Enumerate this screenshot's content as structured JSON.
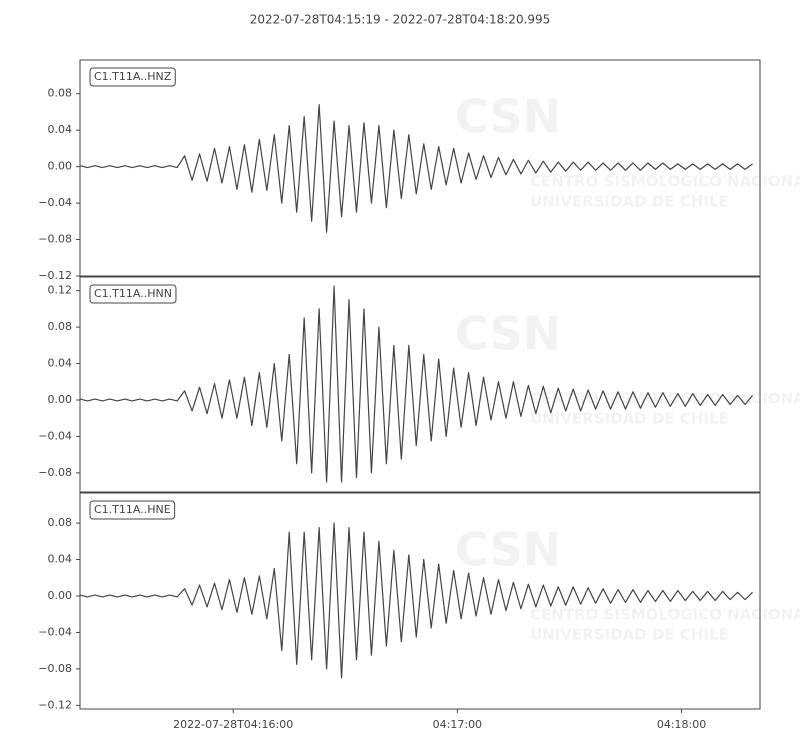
{
  "title": "2022-07-28T04:15:19  -  2022-07-28T04:18:20.995",
  "watermark": {
    "logo": "CSN",
    "lines": [
      "CENTRO SISMOLOGICO NACIONAL",
      "UNIVERSIDAD DE CHILE"
    ]
  },
  "chart_data": [
    {
      "type": "line",
      "label": "C1.T11A..HNZ",
      "color": "#444444",
      "xlim": [
        0,
        181.995
      ],
      "ylim": [
        -0.12,
        0.117
      ],
      "yticks": [
        {
          "value": -0.12,
          "label": "−0.12"
        },
        {
          "value": -0.08,
          "label": "−0.08"
        },
        {
          "value": -0.04,
          "label": "−0.04"
        },
        {
          "value": 0,
          "label": "0.00"
        },
        0.04,
        0.08
      ],
      "x": [
        0,
        2,
        4,
        6,
        8,
        10,
        12,
        14,
        16,
        18,
        20,
        22,
        24,
        26,
        28,
        30,
        32,
        34,
        36,
        38,
        40,
        42,
        44,
        46,
        48,
        50,
        52,
        54,
        56,
        58,
        60,
        62,
        64,
        66,
        68,
        70,
        72,
        74,
        76,
        78,
        80,
        82,
        84,
        86,
        88,
        90,
        92,
        94,
        96,
        98,
        100,
        102,
        104,
        106,
        108,
        110,
        112,
        114,
        116,
        118,
        120,
        122,
        124,
        126,
        128,
        130,
        132,
        134,
        136,
        138,
        140,
        142,
        144,
        146,
        148,
        150,
        152,
        154,
        156,
        158,
        160,
        162,
        164,
        166,
        168,
        170,
        172,
        174,
        176,
        178,
        180
      ],
      "values": [
        0.001,
        -0.001,
        0.001,
        -0.001,
        0.001,
        -0.001,
        0.001,
        -0.001,
        0.001,
        -0.001,
        0.001,
        -0.001,
        0.001,
        -0.001,
        0.012,
        -0.015,
        0.014,
        -0.016,
        0.02,
        -0.018,
        0.022,
        -0.025,
        0.024,
        -0.028,
        0.03,
        -0.026,
        0.035,
        -0.04,
        0.045,
        -0.05,
        0.055,
        -0.06,
        0.068,
        -0.072,
        0.05,
        -0.055,
        0.045,
        -0.05,
        0.048,
        -0.04,
        0.045,
        -0.045,
        0.04,
        -0.035,
        0.035,
        -0.03,
        0.025,
        -0.025,
        0.022,
        -0.02,
        0.02,
        -0.018,
        0.015,
        -0.014,
        0.012,
        -0.012,
        0.01,
        -0.009,
        0.008,
        -0.008,
        0.007,
        -0.007,
        0.006,
        -0.006,
        0.005,
        -0.005,
        0.005,
        -0.004,
        0.005,
        -0.004,
        0.004,
        -0.004,
        0.004,
        -0.004,
        0.004,
        -0.004,
        0.004,
        -0.003,
        0.004,
        -0.003,
        0.003,
        -0.003,
        0.003,
        -0.003,
        0.003,
        -0.003,
        0.003,
        -0.003,
        0.003,
        -0.003,
        0.003
      ]
    },
    {
      "type": "line",
      "label": "C1.T11A..HNN",
      "color": "#444444",
      "xlim": [
        0,
        181.995
      ],
      "ylim": [
        -0.101,
        0.135
      ],
      "yticks": [
        {
          "value": -0.08,
          "label": "−0.08"
        },
        {
          "value": -0.04,
          "label": "−0.04"
        },
        {
          "value": 0,
          "label": "0.00"
        },
        0.04,
        0.08,
        0.12
      ],
      "x": [
        0,
        2,
        4,
        6,
        8,
        10,
        12,
        14,
        16,
        18,
        20,
        22,
        24,
        26,
        28,
        30,
        32,
        34,
        36,
        38,
        40,
        42,
        44,
        46,
        48,
        50,
        52,
        54,
        56,
        58,
        60,
        62,
        64,
        66,
        68,
        70,
        72,
        74,
        76,
        78,
        80,
        82,
        84,
        86,
        88,
        90,
        92,
        94,
        96,
        98,
        100,
        102,
        104,
        106,
        108,
        110,
        112,
        114,
        116,
        118,
        120,
        122,
        124,
        126,
        128,
        130,
        132,
        134,
        136,
        138,
        140,
        142,
        144,
        146,
        148,
        150,
        152,
        154,
        156,
        158,
        160,
        162,
        164,
        166,
        168,
        170,
        172,
        174,
        176,
        178,
        180
      ],
      "values": [
        0.001,
        -0.001,
        0.001,
        -0.001,
        0.001,
        -0.001,
        0.001,
        -0.001,
        0.001,
        -0.001,
        0.001,
        -0.001,
        0.001,
        -0.001,
        0.01,
        -0.012,
        0.014,
        -0.015,
        0.018,
        -0.02,
        0.022,
        -0.02,
        0.025,
        -0.028,
        0.03,
        -0.03,
        0.04,
        -0.045,
        0.05,
        -0.07,
        0.09,
        -0.08,
        0.1,
        -0.09,
        0.125,
        -0.09,
        0.11,
        -0.085,
        0.1,
        -0.08,
        0.08,
        -0.07,
        0.06,
        -0.065,
        0.06,
        -0.05,
        0.05,
        -0.045,
        0.045,
        -0.04,
        0.035,
        -0.03,
        0.03,
        -0.028,
        0.025,
        -0.022,
        0.02,
        -0.02,
        0.02,
        -0.018,
        0.016,
        -0.015,
        0.015,
        -0.014,
        0.013,
        -0.012,
        0.012,
        -0.012,
        0.011,
        -0.01,
        0.01,
        -0.01,
        0.009,
        -0.01,
        0.009,
        -0.009,
        0.008,
        -0.008,
        0.008,
        -0.007,
        0.007,
        -0.007,
        0.007,
        -0.006,
        0.006,
        -0.006,
        0.006,
        -0.005,
        0.005,
        -0.005,
        0.005
      ]
    },
    {
      "type": "line",
      "label": "C1.T11A..HNE",
      "color": "#444444",
      "xlim": [
        0,
        181.995
      ],
      "ylim": [
        -0.124,
        0.113
      ],
      "yticks": [
        {
          "value": -0.12,
          "label": "−0.12"
        },
        {
          "value": -0.08,
          "label": "−0.08"
        },
        {
          "value": -0.04,
          "label": "−0.04"
        },
        {
          "value": 0,
          "label": "0.00"
        },
        0.04,
        0.08
      ],
      "xticks": [
        {
          "value": 41,
          "label": "2022-07-28T04:16:00"
        },
        {
          "value": 101,
          "label": "04:17:00"
        },
        {
          "value": 161,
          "label": "04:18:00"
        }
      ],
      "x": [
        0,
        2,
        4,
        6,
        8,
        10,
        12,
        14,
        16,
        18,
        20,
        22,
        24,
        26,
        28,
        30,
        32,
        34,
        36,
        38,
        40,
        42,
        44,
        46,
        48,
        50,
        52,
        54,
        56,
        58,
        60,
        62,
        64,
        66,
        68,
        70,
        72,
        74,
        76,
        78,
        80,
        82,
        84,
        86,
        88,
        90,
        92,
        94,
        96,
        98,
        100,
        102,
        104,
        106,
        108,
        110,
        112,
        114,
        116,
        118,
        120,
        122,
        124,
        126,
        128,
        130,
        132,
        134,
        136,
        138,
        140,
        142,
        144,
        146,
        148,
        150,
        152,
        154,
        156,
        158,
        160,
        162,
        164,
        166,
        168,
        170,
        172,
        174,
        176,
        178,
        180
      ],
      "values": [
        0.001,
        -0.001,
        0.001,
        -0.001,
        0.001,
        -0.001,
        0.001,
        -0.001,
        0.001,
        -0.001,
        0.001,
        -0.001,
        0.001,
        -0.001,
        0.008,
        -0.01,
        0.012,
        -0.012,
        0.014,
        -0.015,
        0.018,
        -0.018,
        0.02,
        -0.02,
        0.022,
        -0.025,
        0.03,
        -0.06,
        0.07,
        -0.075,
        0.07,
        -0.07,
        0.075,
        -0.08,
        0.08,
        -0.09,
        0.075,
        -0.07,
        0.07,
        -0.065,
        0.06,
        -0.055,
        0.05,
        -0.05,
        0.045,
        -0.045,
        0.04,
        -0.035,
        0.035,
        -0.03,
        0.028,
        -0.025,
        0.025,
        -0.022,
        0.02,
        -0.02,
        0.018,
        -0.016,
        0.015,
        -0.014,
        0.013,
        -0.012,
        0.012,
        -0.011,
        0.01,
        -0.01,
        0.01,
        -0.009,
        0.009,
        -0.008,
        0.008,
        -0.008,
        0.007,
        -0.007,
        0.007,
        -0.007,
        0.006,
        -0.006,
        0.006,
        -0.006,
        0.006,
        -0.005,
        0.005,
        -0.005,
        0.005,
        -0.005,
        0.005,
        -0.004,
        0.004,
        -0.004,
        0.004
      ]
    }
  ]
}
